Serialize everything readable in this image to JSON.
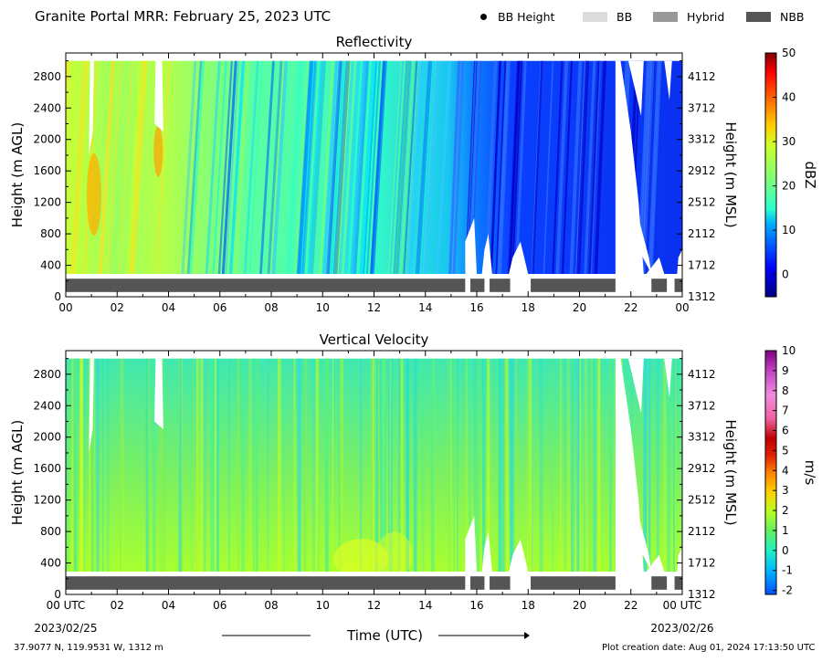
{
  "header": {
    "title": "Granite Portal MRR:  February 25, 2023 UTC",
    "legend": [
      {
        "label": "BB Height",
        "kind": "dot",
        "color": "#000000"
      },
      {
        "label": "BB",
        "kind": "swatch",
        "color": "#dcdcdc"
      },
      {
        "label": "Hybrid",
        "kind": "swatch",
        "color": "#999999"
      },
      {
        "label": "NBB",
        "kind": "swatch",
        "color": "#555555"
      }
    ]
  },
  "chart_data": [
    {
      "type": "heatmap",
      "title": "Reflectivity",
      "ylabel": "Height (m AGL)",
      "ylabel_right": "Height (m MSL)",
      "x_ticks": [
        "00",
        "02",
        "04",
        "06",
        "08",
        "10",
        "12",
        "14",
        "16",
        "18",
        "20",
        "22",
        "00"
      ],
      "y_ticks_left": [
        "0",
        "400",
        "800",
        "1200",
        "1600",
        "2000",
        "2400",
        "2800"
      ],
      "y_ticks_right": [
        "1312",
        "1712",
        "2112",
        "2512",
        "2912",
        "3312",
        "3712",
        "4112"
      ],
      "xlim_hours": [
        0,
        24
      ],
      "ylim_m_agl": [
        0,
        3100
      ],
      "colorbar": {
        "label": "dBZ",
        "range": [
          -5,
          50
        ],
        "ticks": [
          "0",
          "10",
          "20",
          "30",
          "40",
          "50"
        ],
        "tick_values": [
          0,
          10,
          20,
          30,
          40,
          50
        ]
      },
      "rain_type_bar": [
        {
          "start": 0.0,
          "end": 15.55,
          "type": "NBB"
        },
        {
          "start": 15.75,
          "end": 16.3,
          "type": "NBB"
        },
        {
          "start": 16.5,
          "end": 17.3,
          "type": "NBB"
        },
        {
          "start": 18.1,
          "end": 21.4,
          "type": "NBB"
        },
        {
          "start": 22.8,
          "end": 23.4,
          "type": "NBB"
        },
        {
          "start": 23.7,
          "end": 24.0,
          "type": "NBB"
        }
      ]
    },
    {
      "type": "heatmap",
      "title": "Vertical Velocity",
      "ylabel": "Height (m AGL)",
      "ylabel_right": "Height (m MSL)",
      "x_ticks": [
        "00 UTC",
        "02",
        "04",
        "06",
        "08",
        "10",
        "12",
        "14",
        "16",
        "18",
        "20",
        "22",
        "00 UTC"
      ],
      "x_dates": [
        "2023/02/25",
        "2023/02/26"
      ],
      "xlabel": "Time (UTC)",
      "y_ticks_left": [
        "0",
        "400",
        "800",
        "1200",
        "1600",
        "2000",
        "2400",
        "2800"
      ],
      "y_ticks_right": [
        "1312",
        "1712",
        "2112",
        "2512",
        "2912",
        "3312",
        "3712",
        "4112"
      ],
      "xlim_hours": [
        0,
        24
      ],
      "ylim_m_agl": [
        0,
        3100
      ],
      "colorbar": {
        "label": "m/s",
        "range": [
          -2.2,
          10
        ],
        "ticks": [
          "-2",
          "-1",
          "0",
          "1",
          "2",
          "3",
          "4",
          "5",
          "6",
          "7",
          "8",
          "9",
          "10"
        ],
        "tick_values": [
          -2,
          -1,
          0,
          1,
          2,
          3,
          4,
          5,
          6,
          7,
          8,
          9,
          10
        ]
      },
      "rain_type_bar": [
        {
          "start": 0.0,
          "end": 15.55,
          "type": "NBB"
        },
        {
          "start": 15.75,
          "end": 16.3,
          "type": "NBB"
        },
        {
          "start": 16.5,
          "end": 17.3,
          "type": "NBB"
        },
        {
          "start": 18.1,
          "end": 21.4,
          "type": "NBB"
        },
        {
          "start": 22.8,
          "end": 23.4,
          "type": "NBB"
        },
        {
          "start": 23.7,
          "end": 24.0,
          "type": "NBB"
        }
      ]
    }
  ],
  "footer": {
    "location": "37.9077 N, 119.9531 W, 1312 m",
    "created": "Plot creation date: Aug 01, 2024 17:13:50 UTC"
  }
}
